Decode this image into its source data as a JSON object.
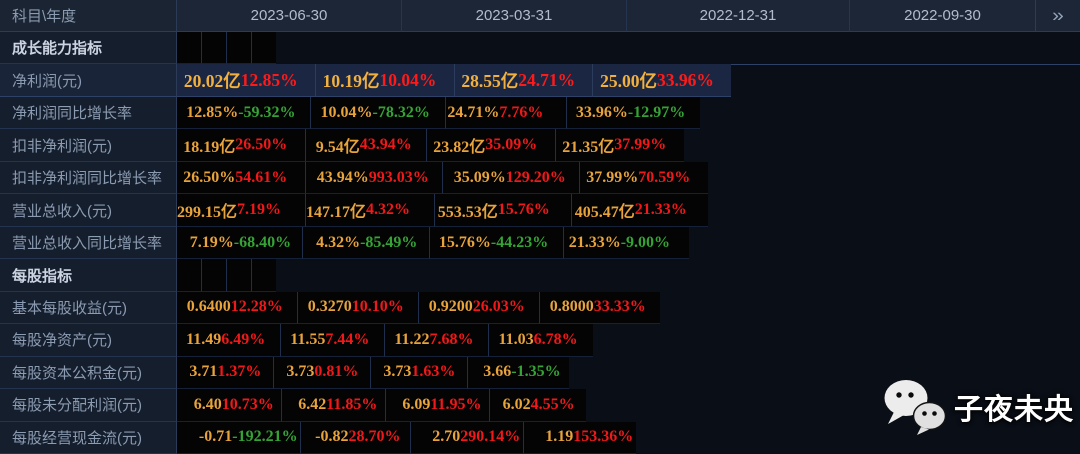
{
  "header": {
    "corner_label": "科目\\年度",
    "dates": [
      "2023-06-30",
      "2023-03-31",
      "2022-12-31",
      "2022-09-30"
    ],
    "chevron_icon": "»"
  },
  "colors": {
    "value_gold": "#e8a33c",
    "increase_red": "#f01818",
    "decrease_green": "#35a335",
    "selected_row_bg": "#1b2742",
    "header_bg": "#1c2636",
    "label_column_bg": "#151e2d",
    "data_cell_bg": "#040404"
  },
  "table": {
    "rows": [
      {
        "type": "section",
        "label": "成长能力指标"
      },
      {
        "type": "data",
        "label": "净利润(元)",
        "selected": true,
        "cells": [
          {
            "value": "20.02亿",
            "pct": "12.85%",
            "pct_color": "red"
          },
          {
            "value": "10.19亿",
            "pct": "10.04%",
            "pct_color": "red"
          },
          {
            "value": "28.55亿",
            "pct": "24.71%",
            "pct_color": "red"
          },
          {
            "value": "25.00亿",
            "pct": "33.96%",
            "pct_color": "red"
          }
        ]
      },
      {
        "type": "data",
        "label": "净利润同比增长率",
        "selected": false,
        "cells": [
          {
            "value": "12.85%",
            "pct": "-59.32%",
            "pct_color": "green"
          },
          {
            "value": "10.04%",
            "pct": "-78.32%",
            "pct_color": "green"
          },
          {
            "value": "24.71%",
            "pct": "7.76%",
            "pct_color": "red"
          },
          {
            "value": "33.96%",
            "pct": "-12.97%",
            "pct_color": "green"
          }
        ]
      },
      {
        "type": "data",
        "label": "扣非净利润(元)",
        "selected": false,
        "cells": [
          {
            "value": "18.19亿",
            "pct": "26.50%",
            "pct_color": "red"
          },
          {
            "value": "9.54亿",
            "pct": "43.94%",
            "pct_color": "red"
          },
          {
            "value": "23.82亿",
            "pct": "35.09%",
            "pct_color": "red"
          },
          {
            "value": "21.35亿",
            "pct": "37.99%",
            "pct_color": "red"
          }
        ]
      },
      {
        "type": "data",
        "label": "扣非净利润同比增长率",
        "selected": false,
        "cells": [
          {
            "value": "26.50%",
            "pct": "54.61%",
            "pct_color": "red"
          },
          {
            "value": "43.94%",
            "pct": "993.03%",
            "pct_color": "red"
          },
          {
            "value": "35.09%",
            "pct": "129.20%",
            "pct_color": "red"
          },
          {
            "value": "37.99%",
            "pct": "70.59%",
            "pct_color": "red"
          }
        ]
      },
      {
        "type": "data",
        "label": "营业总收入(元)",
        "selected": false,
        "cells": [
          {
            "value": "299.15亿",
            "pct": "7.19%",
            "pct_color": "red"
          },
          {
            "value": "147.17亿",
            "pct": "4.32%",
            "pct_color": "red"
          },
          {
            "value": "553.53亿",
            "pct": "15.76%",
            "pct_color": "red"
          },
          {
            "value": "405.47亿",
            "pct": "21.33%",
            "pct_color": "red"
          }
        ]
      },
      {
        "type": "data",
        "label": "营业总收入同比增长率",
        "selected": false,
        "cells": [
          {
            "value": "7.19%",
            "pct": "-68.40%",
            "pct_color": "green"
          },
          {
            "value": "4.32%",
            "pct": "-85.49%",
            "pct_color": "green"
          },
          {
            "value": "15.76%",
            "pct": "-44.23%",
            "pct_color": "green"
          },
          {
            "value": "21.33%",
            "pct": "-9.00%",
            "pct_color": "green"
          }
        ]
      },
      {
        "type": "section",
        "label": "每股指标"
      },
      {
        "type": "data",
        "label": "基本每股收益(元)",
        "selected": false,
        "cells": [
          {
            "value": "0.6400",
            "pct": "12.28%",
            "pct_color": "red"
          },
          {
            "value": "0.3270",
            "pct": "10.10%",
            "pct_color": "red"
          },
          {
            "value": "0.9200",
            "pct": "26.03%",
            "pct_color": "red"
          },
          {
            "value": "0.8000",
            "pct": "33.33%",
            "pct_color": "red"
          }
        ]
      },
      {
        "type": "data",
        "label": "每股净资产(元)",
        "selected": false,
        "cells": [
          {
            "value": "11.49",
            "pct": "6.49%",
            "pct_color": "red"
          },
          {
            "value": "11.55",
            "pct": "7.44%",
            "pct_color": "red"
          },
          {
            "value": "11.22",
            "pct": "7.68%",
            "pct_color": "red"
          },
          {
            "value": "11.03",
            "pct": "6.78%",
            "pct_color": "red"
          }
        ]
      },
      {
        "type": "data",
        "label": "每股资本公积金(元)",
        "selected": false,
        "cells": [
          {
            "value": "3.71",
            "pct": "1.37%",
            "pct_color": "red"
          },
          {
            "value": "3.73",
            "pct": "0.81%",
            "pct_color": "red"
          },
          {
            "value": "3.73",
            "pct": "1.63%",
            "pct_color": "red"
          },
          {
            "value": "3.66",
            "pct": "-1.35%",
            "pct_color": "green"
          }
        ]
      },
      {
        "type": "data",
        "label": "每股未分配利润(元)",
        "selected": false,
        "cells": [
          {
            "value": "6.40",
            "pct": "10.73%",
            "pct_color": "red"
          },
          {
            "value": "6.42",
            "pct": "11.85%",
            "pct_color": "red"
          },
          {
            "value": "6.09",
            "pct": "11.95%",
            "pct_color": "red"
          },
          {
            "value": "6.02",
            "pct": "4.55%",
            "pct_color": "red"
          }
        ]
      },
      {
        "type": "data",
        "label": "每股经营现金流(元)",
        "selected": false,
        "cells": [
          {
            "value": "-0.71",
            "pct": "-192.21%",
            "pct_color": "green"
          },
          {
            "value": "-0.82",
            "pct": "28.70%",
            "pct_color": "red"
          },
          {
            "value": "2.70",
            "pct": "290.14%",
            "pct_color": "red"
          },
          {
            "value": "1.19",
            "pct": "153.36%",
            "pct_color": "red"
          }
        ]
      }
    ]
  },
  "watermark": {
    "text": "子夜未央",
    "icon": "wechat-icon"
  }
}
